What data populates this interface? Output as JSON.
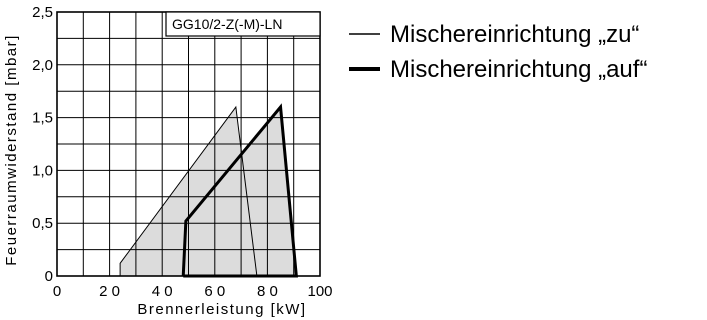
{
  "chart_data": {
    "type": "area",
    "title": "GG10/2-Z(-M)-LN",
    "xlabel": "Brennerleistung  [kW]",
    "ylabel": "Feuerraumwiderstand  [mbar]",
    "xlim": [
      0,
      100
    ],
    "ylim": [
      0,
      2.5
    ],
    "grid": true,
    "legend_placement": "right",
    "x_ticks": [
      0,
      20,
      40,
      60,
      80,
      100
    ],
    "x_tick_labels": [
      "0",
      "2 0",
      "4 0",
      "6 0",
      "8 0",
      "100"
    ],
    "y_ticks": [
      0,
      0.5,
      1.0,
      1.5,
      2.0,
      2.5
    ],
    "y_tick_labels": [
      "0",
      "0,5",
      "1,0",
      "1,5",
      "2,0",
      "2,5"
    ],
    "series": [
      {
        "name": "Mischereinrichtung „zu“",
        "style": "thin",
        "color": "#000000",
        "fill": "#dcdcdc",
        "points": [
          [
            24,
            0
          ],
          [
            24,
            0.12
          ],
          [
            68,
            1.6
          ],
          [
            76,
            0
          ],
          [
            24,
            0
          ]
        ]
      },
      {
        "name": "Mischereinrichtung „auf“",
        "style": "thick",
        "color": "#000000",
        "fill": "#dcdcdc",
        "points": [
          [
            48,
            0
          ],
          [
            49,
            0.52
          ],
          [
            85,
            1.6
          ],
          [
            91,
            0
          ],
          [
            48,
            0
          ]
        ]
      }
    ]
  }
}
